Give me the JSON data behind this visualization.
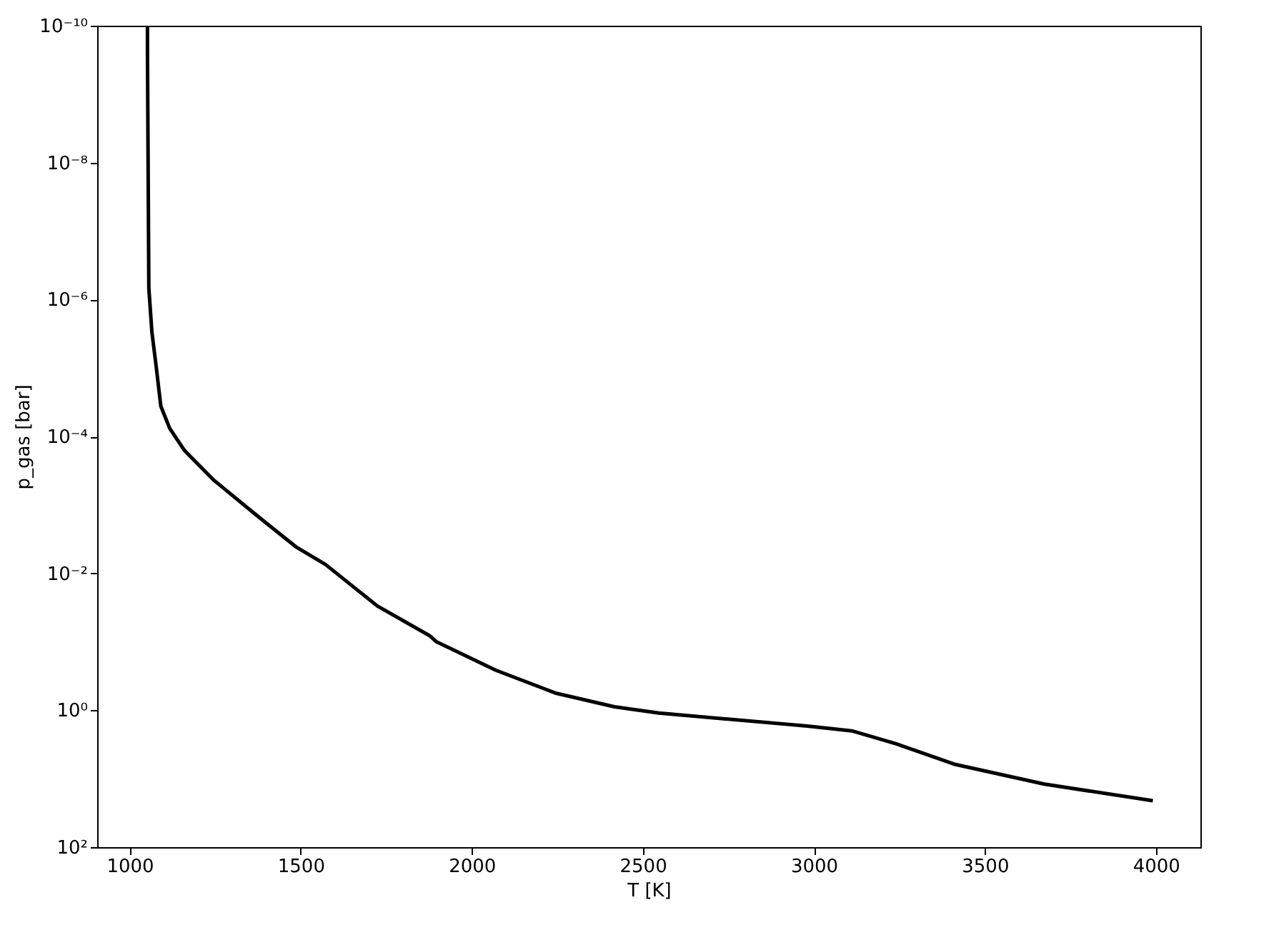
{
  "chart_data": {
    "type": "line",
    "xlabel": "T [K]",
    "ylabel": "p_gas [bar]",
    "x": [
      1052,
      1052,
      1056,
      1065,
      1078,
      1091,
      1117,
      1160,
      1247,
      1377,
      1486,
      1572,
      1724,
      1876,
      1897,
      2070,
      2244,
      2417,
      2547,
      2981,
      3111,
      3241,
      3414,
      3674,
      3991
    ],
    "series": [
      {
        "color": "#000000",
        "values": [
          1e-10,
          2.3e-10,
          6.8e-07,
          3e-06,
          1e-05,
          3.6e-05,
          7.6e-05,
          0.00016,
          0.00044,
          0.0015,
          0.0041,
          0.0074,
          0.03,
          0.081,
          0.1,
          0.26,
          0.56,
          0.89,
          1.1,
          1.7,
          2.0,
          3.1,
          6.2,
          12,
          21
        ]
      }
    ],
    "log": "y",
    "xlim": [
      905,
      4130
    ],
    "ylim": [
      100,
      1e-10
    ],
    "xticks": [
      1000,
      1500,
      2000,
      2500,
      3000,
      3500,
      4000
    ],
    "yticks": [
      {
        "value": 100,
        "label": "10²"
      },
      {
        "value": 1,
        "label": "10⁰"
      },
      {
        "value": 0.01,
        "label": "10⁻²"
      },
      {
        "value": 0.0001,
        "label": "10⁻⁴"
      },
      {
        "value": 1e-06,
        "label": "10⁻⁶"
      },
      {
        "value": 1e-08,
        "label": "10⁻⁸"
      },
      {
        "value": 1e-10,
        "label": "10⁻¹⁰"
      }
    ],
    "grid": false,
    "marker": "none",
    "line_style": "solid"
  }
}
